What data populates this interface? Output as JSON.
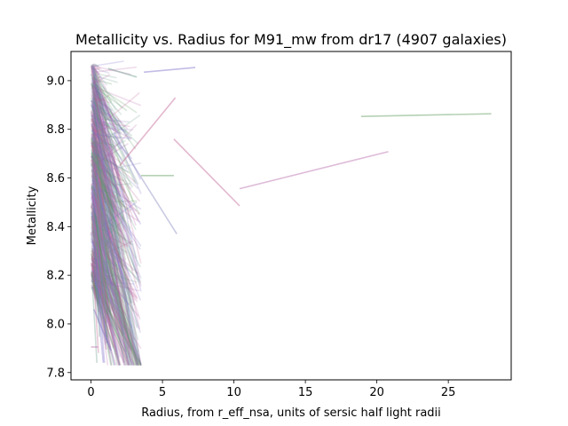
{
  "chart_data": {
    "type": "line",
    "title": "Metallicity vs. Radius for M91_mw from dr17 (4907 galaxies)",
    "xlabel": "Radius, from r_eff_nsa, units of sersic half light radii",
    "ylabel": "Metallicity",
    "xlim": [
      -1.4,
      29.4
    ],
    "ylim": [
      7.77,
      9.12
    ],
    "x_ticks": [
      0,
      5,
      10,
      15,
      20,
      25
    ],
    "x_tick_labels": [
      "0",
      "5",
      "10",
      "15",
      "20",
      "25"
    ],
    "y_ticks": [
      7.8,
      8.0,
      8.2,
      8.4,
      8.6,
      8.8,
      9.0
    ],
    "y_tick_labels": [
      "7.8",
      "8.0",
      "8.2",
      "8.4",
      "8.6",
      "8.8",
      "9.0"
    ],
    "grid": false,
    "legend": "none",
    "galaxy_count": 4907,
    "series_colors": [
      "#5a9a5a",
      "#b566a8",
      "#7a6ac8",
      "#c06090",
      "#6a9a8a",
      "#8a8ac0"
    ],
    "notable_series": [
      {
        "x": [
          18.9,
          28.0
        ],
        "y": [
          8.853,
          8.864
        ]
      },
      {
        "x": [
          10.4,
          20.8
        ],
        "y": [
          8.556,
          8.708
        ]
      },
      {
        "x": [
          3.7,
          7.3
        ],
        "y": [
          9.035,
          9.054
        ]
      },
      {
        "x": [
          5.8,
          10.4
        ],
        "y": [
          8.76,
          8.485
        ]
      },
      {
        "x": [
          1.2,
          3.2
        ],
        "y": [
          9.05,
          9.015
        ]
      },
      {
        "x": [
          1.6,
          6.0
        ],
        "y": [
          8.78,
          8.37
        ]
      },
      {
        "x": [
          3.5,
          5.8
        ],
        "y": [
          8.61,
          8.61
        ]
      },
      {
        "x": [
          0.0,
          0.5
        ],
        "y": [
          7.905,
          7.905
        ]
      },
      {
        "x": [
          0.2,
          1.4
        ],
        "y": [
          8.06,
          7.89
        ]
      },
      {
        "x": [
          2.0,
          5.9
        ],
        "y": [
          8.65,
          8.93
        ]
      }
    ],
    "bulk_region": {
      "x_range": [
        0.0,
        3.5
      ],
      "y_range": [
        7.83,
        9.08
      ]
    }
  }
}
